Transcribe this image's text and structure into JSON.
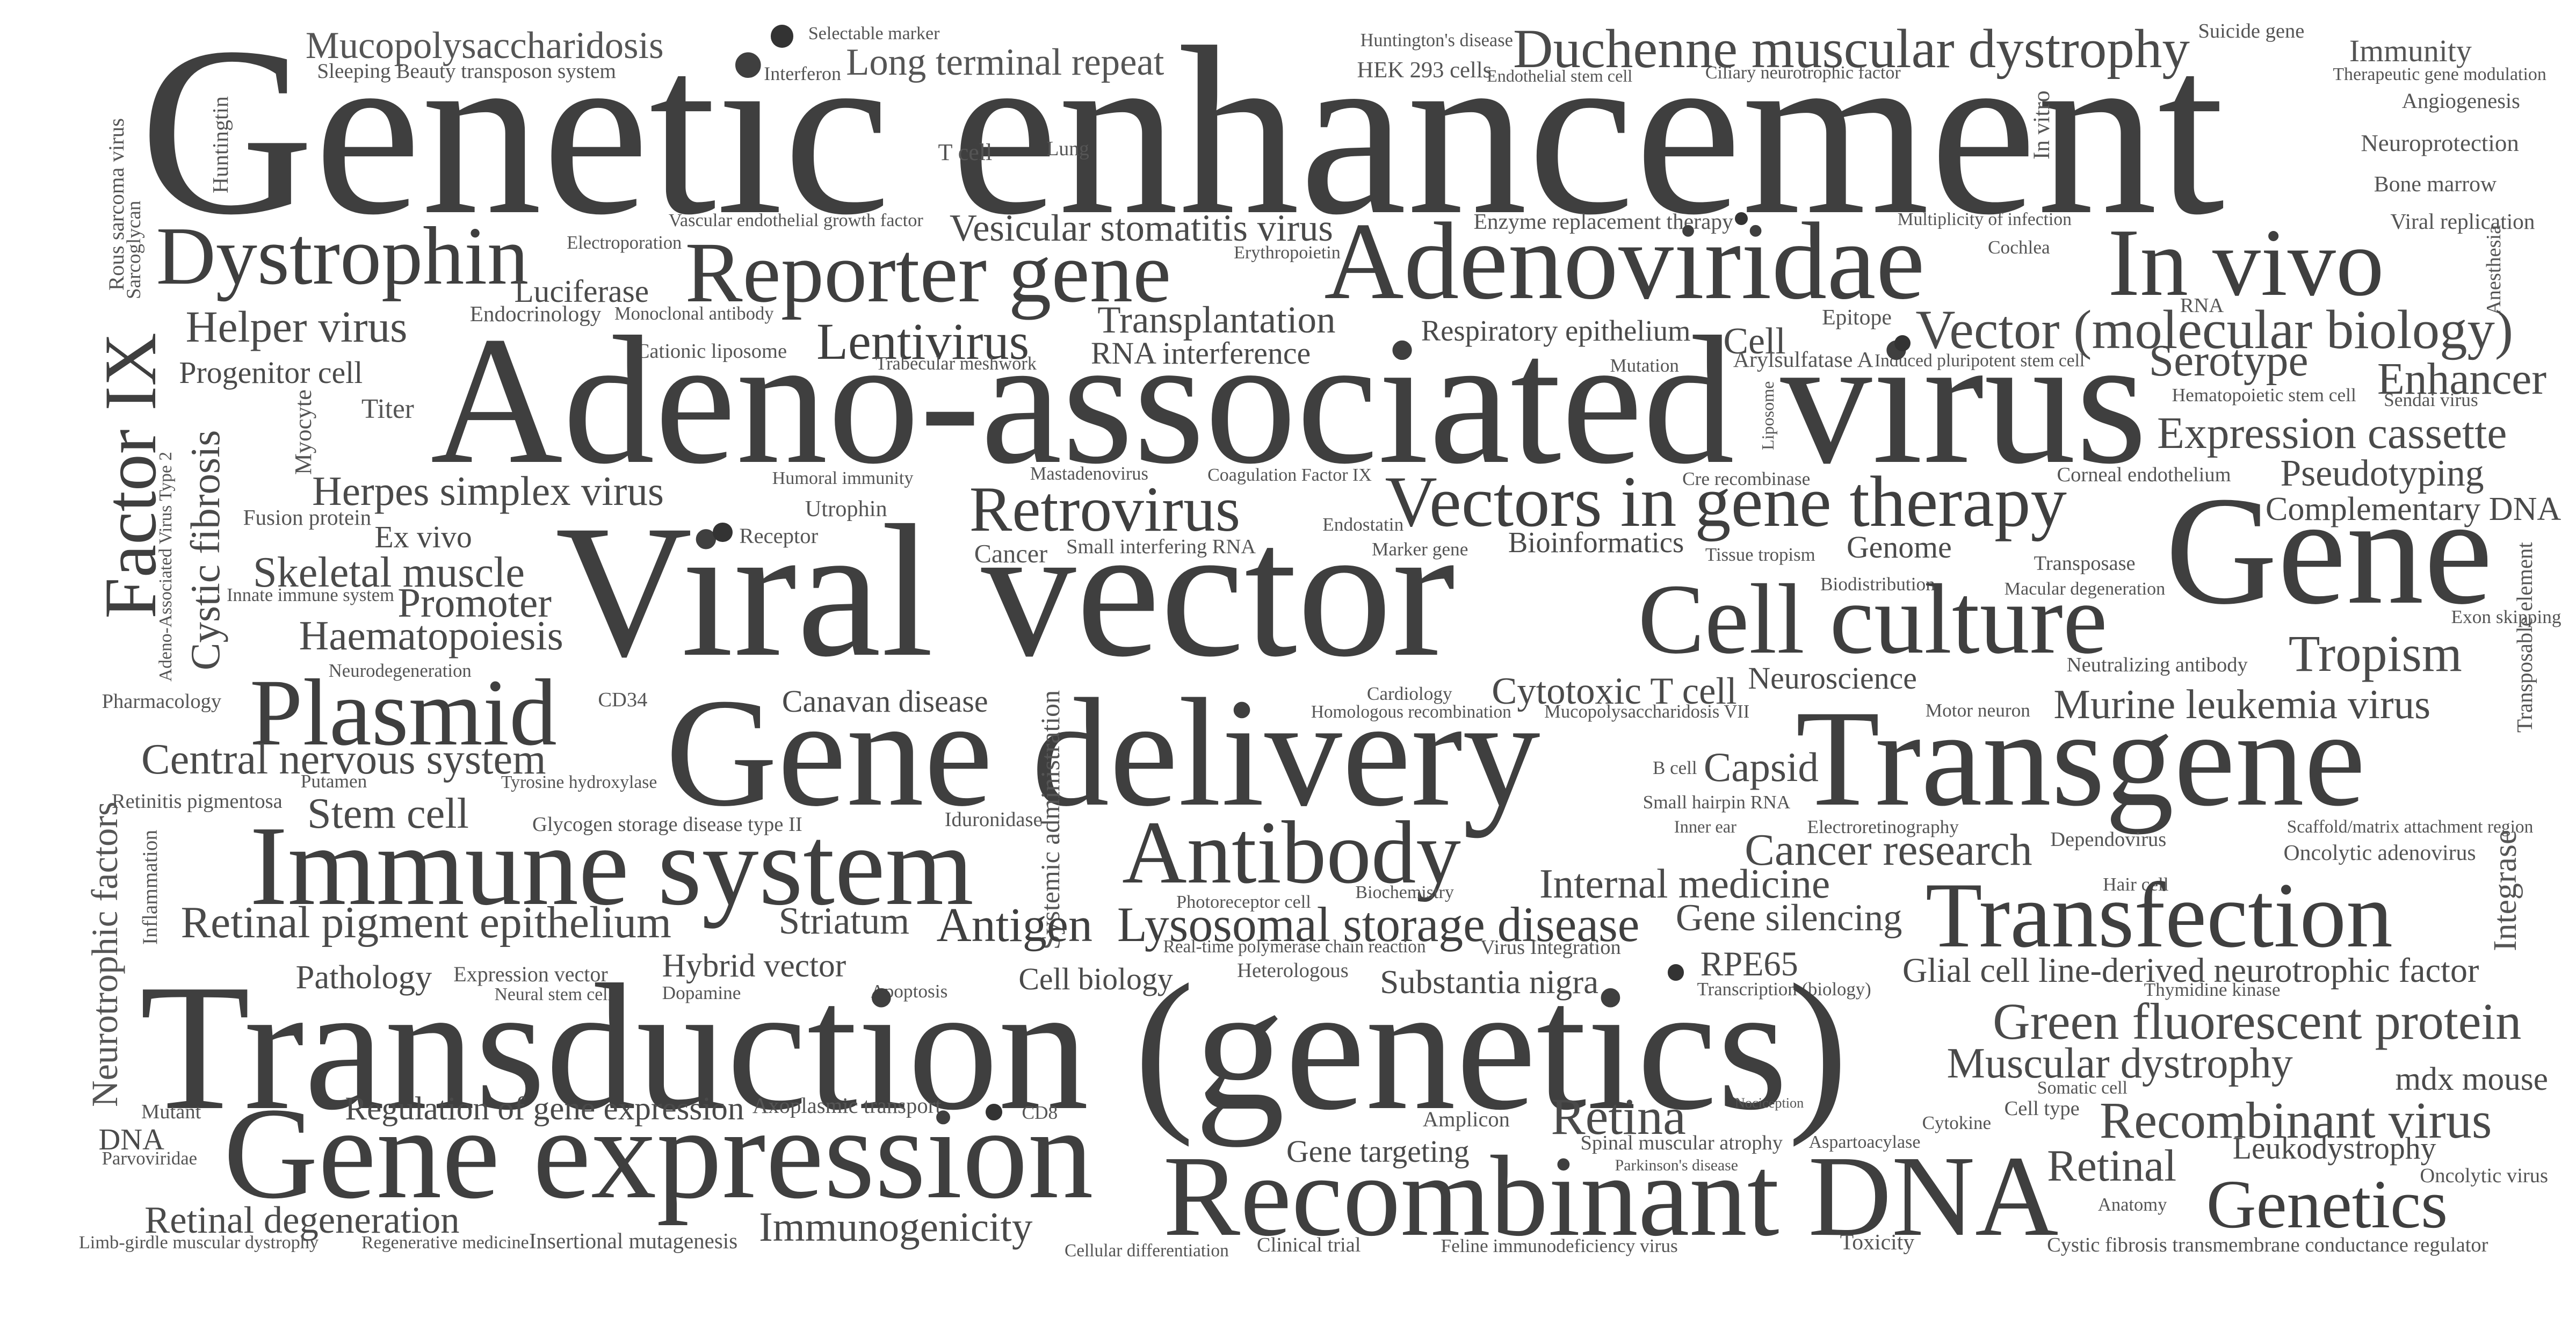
{
  "palette": {
    "text": "#444444",
    "bullet": "#333333"
  },
  "words": [
    {
      "text": "Genetic enhancement",
      "c": "#3f3f3f"
    },
    {
      "text": "Mucopolysaccharidosis",
      "c": "#555555"
    },
    {
      "text": "Sleeping Beauty transposon system",
      "c": "#555555"
    },
    {
      "text": "Selectable marker",
      "c": "#555555"
    },
    {
      "text": "Interferon",
      "c": "#555555"
    },
    {
      "text": "Long terminal repeat",
      "c": "#555555"
    },
    {
      "text": "Huntington's disease",
      "c": "#555555"
    },
    {
      "text": "HEK 293 cells",
      "c": "#555555"
    },
    {
      "text": "Endothelial stem cell",
      "c": "#555555"
    },
    {
      "text": "Duchenne muscular dystrophy",
      "c": "#4a4a4a"
    },
    {
      "text": "Ciliary neurotrophic factor",
      "c": "#555555"
    },
    {
      "text": "Suicide gene",
      "c": "#555555"
    },
    {
      "text": "Immunity",
      "c": "#555555"
    },
    {
      "text": "Therapeutic gene modulation",
      "c": "#555555"
    },
    {
      "text": "Angiogenesis",
      "c": "#555555"
    },
    {
      "text": "Neuroprotection",
      "c": "#555555"
    },
    {
      "text": "Bone marrow",
      "c": "#555555"
    },
    {
      "text": "Viral replication",
      "c": "#555555"
    },
    {
      "text": "Rous sarcoma virus",
      "c": "#555555"
    },
    {
      "text": "Sarcoglycan",
      "c": "#555555"
    },
    {
      "text": "Huntingtin",
      "c": "#555555"
    },
    {
      "text": "T cell",
      "c": "#555555"
    },
    {
      "text": "Lung",
      "c": "#555555"
    },
    {
      "text": "In vitro",
      "c": "#555555"
    },
    {
      "text": "Dystrophin",
      "c": "#3f3f3f"
    },
    {
      "text": "Electroporation",
      "c": "#555555"
    },
    {
      "text": "Vascular endothelial growth factor",
      "c": "#555555"
    },
    {
      "text": "Vesicular stomatitis virus",
      "c": "#4a4a4a"
    },
    {
      "text": "Reporter gene",
      "c": "#3f3f3f"
    },
    {
      "text": "Erythropoietin",
      "c": "#555555"
    },
    {
      "text": "Enzyme replacement therapy",
      "c": "#555555"
    },
    {
      "text": "Adenoviridae",
      "c": "#3f3f3f"
    },
    {
      "text": "Multiplicity of infection",
      "c": "#555555"
    },
    {
      "text": "Cochlea",
      "c": "#555555"
    },
    {
      "text": "In vivo",
      "c": "#3f3f3f"
    },
    {
      "text": "Anesthesia",
      "c": "#555555"
    },
    {
      "text": "Luciferase",
      "c": "#4a4a4a"
    },
    {
      "text": "Endocrinology",
      "c": "#555555"
    },
    {
      "text": "Monoclonal antibody",
      "c": "#555555"
    },
    {
      "text": "Helper virus",
      "c": "#4a4a4a"
    },
    {
      "text": "Transplantation",
      "c": "#4a4a4a"
    },
    {
      "text": "Respiratory epithelium",
      "c": "#4a4a4a"
    },
    {
      "text": "Cell",
      "c": "#4a4a4a"
    },
    {
      "text": "Epitope",
      "c": "#555555"
    },
    {
      "text": "RNA",
      "c": "#555555"
    },
    {
      "text": "Vector (molecular biology)",
      "c": "#4a4a4a"
    },
    {
      "text": "Factor IX",
      "c": "#3f3f3f"
    },
    {
      "text": "Progenitor cell",
      "c": "#4a4a4a"
    },
    {
      "text": "Cationic liposome",
      "c": "#555555"
    },
    {
      "text": "Lentivirus",
      "c": "#3f3f3f"
    },
    {
      "text": "Trabecular meshwork",
      "c": "#555555"
    },
    {
      "text": "RNA interference",
      "c": "#4a4a4a"
    },
    {
      "text": "Mutation",
      "c": "#555555"
    },
    {
      "text": "Arylsulfatase A",
      "c": "#555555"
    },
    {
      "text": "Induced pluripotent stem cell",
      "c": "#555555"
    },
    {
      "text": "Serotype",
      "c": "#4a4a4a"
    },
    {
      "text": "Enhancer",
      "c": "#4a4a4a"
    },
    {
      "text": "Hematopoietic stem cell",
      "c": "#555555"
    },
    {
      "text": "Sendai virus",
      "c": "#555555"
    },
    {
      "text": "Adeno-associated virus",
      "c": "#3f3f3f"
    },
    {
      "text": "Titer",
      "c": "#555555"
    },
    {
      "text": "Myocyte",
      "c": "#555555"
    },
    {
      "text": "Liposome",
      "c": "#555555"
    },
    {
      "text": "Expression cassette",
      "c": "#4a4a4a"
    },
    {
      "text": "Cystic fibrosis",
      "c": "#4a4a4a"
    },
    {
      "text": "Adeno-Associated Virus Type 2",
      "c": "#555555"
    },
    {
      "text": "Herpes simplex virus",
      "c": "#4a4a4a"
    },
    {
      "text": "Humoral immunity",
      "c": "#555555"
    },
    {
      "text": "Mastadenovirus",
      "c": "#555555"
    },
    {
      "text": "Coagulation Factor IX",
      "c": "#555555"
    },
    {
      "text": "Retrovirus",
      "c": "#3f3f3f"
    },
    {
      "text": "Cre recombinase",
      "c": "#555555"
    },
    {
      "text": "Vectors in gene therapy",
      "c": "#3f3f3f"
    },
    {
      "text": "Corneal endothelium",
      "c": "#555555"
    },
    {
      "text": "Pseudotyping",
      "c": "#4a4a4a"
    },
    {
      "text": "Fusion protein",
      "c": "#555555"
    },
    {
      "text": "Utrophin",
      "c": "#555555"
    },
    {
      "text": "Endostatin",
      "c": "#555555"
    },
    {
      "text": "Complementary DNA",
      "c": "#4a4a4a"
    },
    {
      "text": "Ex vivo",
      "c": "#4a4a4a"
    },
    {
      "text": "Receptor",
      "c": "#555555"
    },
    {
      "text": "Cancer",
      "c": "#555555"
    },
    {
      "text": "Small interfering RNA",
      "c": "#555555"
    },
    {
      "text": "Marker gene",
      "c": "#555555"
    },
    {
      "text": "Bioinformatics",
      "c": "#4a4a4a"
    },
    {
      "text": "Tissue tropism",
      "c": "#555555"
    },
    {
      "text": "Genome",
      "c": "#4a4a4a"
    },
    {
      "text": "Gene",
      "c": "#3f3f3f"
    },
    {
      "text": "Skeletal muscle",
      "c": "#4a4a4a"
    },
    {
      "text": "Viral vector",
      "c": "#3f3f3f"
    },
    {
      "text": "Transposase",
      "c": "#555555"
    },
    {
      "text": "Innate immune system",
      "c": "#555555"
    },
    {
      "text": "Promoter",
      "c": "#4a4a4a"
    },
    {
      "text": "Biodistribution",
      "c": "#555555"
    },
    {
      "text": "Macular degeneration",
      "c": "#555555"
    },
    {
      "text": "Cell culture",
      "c": "#3f3f3f"
    },
    {
      "text": "Exon skipping",
      "c": "#555555"
    },
    {
      "text": "Transposable element",
      "c": "#555555"
    },
    {
      "text": "Haematopoiesis",
      "c": "#4a4a4a"
    },
    {
      "text": "Tropism",
      "c": "#4a4a4a"
    },
    {
      "text": "Neurodegeneration",
      "c": "#555555"
    },
    {
      "text": "Neutralizing antibody",
      "c": "#555555"
    },
    {
      "text": "Neuroscience",
      "c": "#4a4a4a"
    },
    {
      "text": "Cardiology",
      "c": "#555555"
    },
    {
      "text": "Cytotoxic T cell",
      "c": "#4a4a4a"
    },
    {
      "text": "Plasmid",
      "c": "#3f3f3f"
    },
    {
      "text": "Pharmacology",
      "c": "#555555"
    },
    {
      "text": "CD34",
      "c": "#555555"
    },
    {
      "text": "Canavan disease",
      "c": "#4a4a4a"
    },
    {
      "text": "Homologous recombination",
      "c": "#555555"
    },
    {
      "text": "Mucopolysaccharidosis VII",
      "c": "#555555"
    },
    {
      "text": "Motor neuron",
      "c": "#555555"
    },
    {
      "text": "Murine leukemia virus",
      "c": "#4a4a4a"
    },
    {
      "text": "Central nervous system",
      "c": "#4a4a4a"
    },
    {
      "text": "Putamen",
      "c": "#555555"
    },
    {
      "text": "Tyrosine hydroxylase",
      "c": "#555555"
    },
    {
      "text": "Gene delivery",
      "c": "#3f3f3f"
    },
    {
      "text": "B cell",
      "c": "#555555"
    },
    {
      "text": "Capsid",
      "c": "#4a4a4a"
    },
    {
      "text": "Transgene",
      "c": "#3f3f3f"
    },
    {
      "text": "Retinitis pigmentosa",
      "c": "#555555"
    },
    {
      "text": "Stem cell",
      "c": "#4a4a4a"
    },
    {
      "text": "Glycogen storage disease type II",
      "c": "#555555"
    },
    {
      "text": "Iduronidase",
      "c": "#555555"
    },
    {
      "text": "Systemic administration",
      "c": "#555555"
    },
    {
      "text": "Small hairpin RNA",
      "c": "#555555"
    },
    {
      "text": "Inner ear",
      "c": "#555555"
    },
    {
      "text": "Electroretinography",
      "c": "#555555"
    },
    {
      "text": "Scaffold/matrix attachment region",
      "c": "#555555"
    },
    {
      "text": "Dependovirus",
      "c": "#555555"
    },
    {
      "text": "Oncolytic adenovirus",
      "c": "#555555"
    },
    {
      "text": "Neurotrophic factors",
      "c": "#555555"
    },
    {
      "text": "Inflammation",
      "c": "#555555"
    },
    {
      "text": "Immune system",
      "c": "#3f3f3f"
    },
    {
      "text": "Antibody",
      "c": "#3f3f3f"
    },
    {
      "text": "Cancer research",
      "c": "#4a4a4a"
    },
    {
      "text": "Hair cell",
      "c": "#555555"
    },
    {
      "text": "Internal medicine",
      "c": "#4a4a4a"
    },
    {
      "text": "Biochemistry",
      "c": "#555555"
    },
    {
      "text": "Retinal pigment epithelium",
      "c": "#4a4a4a"
    },
    {
      "text": "Striatum",
      "c": "#4a4a4a"
    },
    {
      "text": "Antigen",
      "c": "#3f3f3f"
    },
    {
      "text": "Photoreceptor cell",
      "c": "#555555"
    },
    {
      "text": "Lysosomal storage disease",
      "c": "#3f3f3f"
    },
    {
      "text": "Gene silencing",
      "c": "#4a4a4a"
    },
    {
      "text": "Transfection",
      "c": "#3f3f3f"
    },
    {
      "text": "Integrase",
      "c": "#555555"
    },
    {
      "text": "Real-time polymerase chain reaction",
      "c": "#555555"
    },
    {
      "text": "Virus Integration",
      "c": "#555555"
    },
    {
      "text": "RPE65",
      "c": "#4a4a4a"
    },
    {
      "text": "Glial cell line-derived neurotrophic factor",
      "c": "#4a4a4a"
    },
    {
      "text": "Hybrid vector",
      "c": "#4a4a4a"
    },
    {
      "text": "Pathology",
      "c": "#4a4a4a"
    },
    {
      "text": "Expression vector",
      "c": "#555555"
    },
    {
      "text": "Heterologous",
      "c": "#555555"
    },
    {
      "text": "Cell biology",
      "c": "#4a4a4a"
    },
    {
      "text": "Substantia nigra",
      "c": "#4a4a4a"
    },
    {
      "text": "Transcription (biology)",
      "c": "#555555"
    },
    {
      "text": "Thymidine kinase",
      "c": "#555555"
    },
    {
      "text": "Neural stem cell",
      "c": "#555555"
    },
    {
      "text": "Dopamine",
      "c": "#555555"
    },
    {
      "text": "Apoptosis",
      "c": "#555555"
    },
    {
      "text": "Green fluorescent protein",
      "c": "#4a4a4a"
    },
    {
      "text": "Transduction (genetics)",
      "c": "#3f3f3f"
    },
    {
      "text": "Muscular dystrophy",
      "c": "#4a4a4a"
    },
    {
      "text": "mdx mouse",
      "c": "#4a4a4a"
    },
    {
      "text": "Somatic cell",
      "c": "#555555"
    },
    {
      "text": "Regulation of gene expression",
      "c": "#4a4a4a"
    },
    {
      "text": "Mutant",
      "c": "#555555"
    },
    {
      "text": "DNA",
      "c": "#4a4a4a"
    },
    {
      "text": "Parvoviridae",
      "c": "#555555"
    },
    {
      "text": "Axoplasmic transport",
      "c": "#555555"
    },
    {
      "text": "CD8",
      "c": "#555555"
    },
    {
      "text": "Amplicon",
      "c": "#555555"
    },
    {
      "text": "Retina",
      "c": "#4a4a4a"
    },
    {
      "text": "Nociception",
      "c": "#555555"
    },
    {
      "text": "Cytokine",
      "c": "#555555"
    },
    {
      "text": "Cell type",
      "c": "#555555"
    },
    {
      "text": "Recombinant virus",
      "c": "#4a4a4a"
    },
    {
      "text": "Leukodystrophy",
      "c": "#4a4a4a"
    },
    {
      "text": "Gene expression",
      "c": "#3f3f3f"
    },
    {
      "text": "Gene targeting",
      "c": "#4a4a4a"
    },
    {
      "text": "Spinal muscular atrophy",
      "c": "#555555"
    },
    {
      "text": "Aspartoacylase",
      "c": "#555555"
    },
    {
      "text": "Parkinson's disease",
      "c": "#555555"
    },
    {
      "text": "Retinal",
      "c": "#4a4a4a"
    },
    {
      "text": "Oncolytic virus",
      "c": "#555555"
    },
    {
      "text": "Recombinant DNA",
      "c": "#3f3f3f"
    },
    {
      "text": "Anatomy",
      "c": "#555555"
    },
    {
      "text": "Genetics",
      "c": "#3f3f3f"
    },
    {
      "text": "Retinal degeneration",
      "c": "#4a4a4a"
    },
    {
      "text": "Immunogenicity",
      "c": "#4a4a4a"
    },
    {
      "text": "Limb-girdle muscular dystrophy",
      "c": "#555555"
    },
    {
      "text": "Regenerative medicine",
      "c": "#555555"
    },
    {
      "text": "Insertional mutagenesis",
      "c": "#555555"
    },
    {
      "text": "Cellular differentiation",
      "c": "#555555"
    },
    {
      "text": "Clinical trial",
      "c": "#555555"
    },
    {
      "text": "Feline immunodeficiency virus",
      "c": "#555555"
    },
    {
      "text": "Toxicity",
      "c": "#555555"
    },
    {
      "text": "Cystic fibrosis transmembrane conductance regulator",
      "c": "#555555"
    }
  ]
}
